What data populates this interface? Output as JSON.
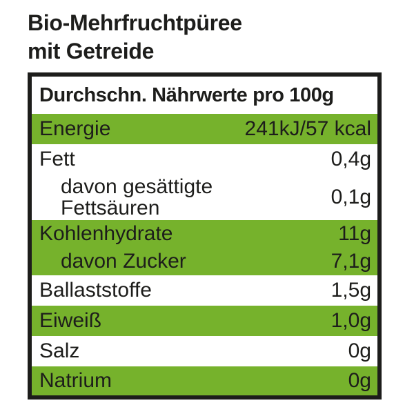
{
  "title": {
    "line1": "Bio-Mehrfruchtpüree",
    "line2": "mit Getreide"
  },
  "table": {
    "header": "Durchschn. Nährwerte pro 100g",
    "rows": [
      {
        "label": "Energie",
        "value": "241kJ/57 kcal",
        "highlight": true,
        "indent": false
      },
      {
        "label": "Fett",
        "value": "0,4g",
        "highlight": false,
        "indent": false
      },
      {
        "label": "davon gesättigte Fettsäuren",
        "value": "0,1g",
        "highlight": false,
        "indent": true
      },
      {
        "label": "Kohlenhydrate",
        "value": "11g",
        "highlight": true,
        "indent": false
      },
      {
        "label": "davon Zucker",
        "value": "7,1g",
        "highlight": true,
        "indent": true
      },
      {
        "label": "Ballaststoffe",
        "value": "1,5g",
        "highlight": false,
        "indent": false
      },
      {
        "label": "Eiweiß",
        "value": "1,0g",
        "highlight": true,
        "indent": false
      },
      {
        "label": "Salz",
        "value": "0g",
        "highlight": false,
        "indent": false
      },
      {
        "label": "Natrium",
        "value": "0g",
        "highlight": true,
        "indent": false
      }
    ],
    "colors": {
      "highlight_green": "#76b22c",
      "text": "#1d1d1b",
      "border": "#1d1d1b",
      "background": "#ffffff"
    }
  }
}
